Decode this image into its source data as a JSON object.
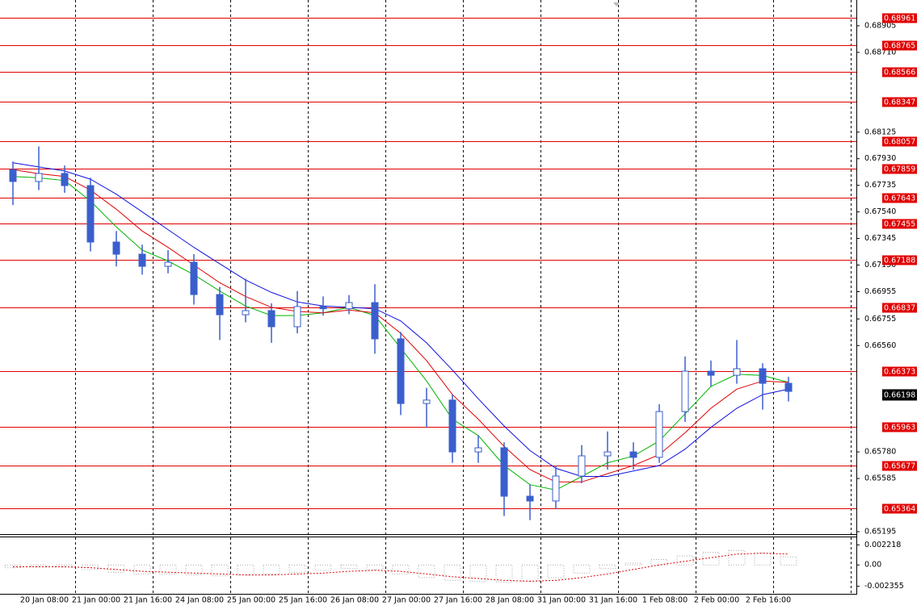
{
  "chart_data": {
    "type": "candlestick",
    "categories": [
      null,
      "20 Jan 08:00",
      null,
      "21 Jan 00:00",
      null,
      "21 Jan 16:00",
      null,
      "24 Jan 08:00",
      null,
      "25 Jan 00:00",
      null,
      "25 Jan 16:00",
      null,
      "26 Jan 08:00",
      null,
      "27 Jan 00:00",
      null,
      "27 Jan 16:00",
      null,
      "28 Jan 08:00",
      null,
      "31 Jan 00:00",
      null,
      "31 Jan 16:00",
      null,
      "1 Feb 08:00",
      null,
      "2 Feb 00:00",
      null,
      "2 Feb 16:00",
      null
    ],
    "open": [
      0.6785,
      0.67763,
      0.67822,
      0.67733,
      0.67319,
      0.6723,
      0.67141,
      0.67171,
      0.66934,
      0.66786,
      0.66816,
      0.66698,
      0.66846,
      0.6683,
      0.66875,
      0.66609,
      0.66135,
      0.6616,
      0.6578,
      0.6581,
      0.65455,
      0.6542,
      0.65603,
      0.65751,
      0.6578,
      0.6574,
      0.66076,
      0.66372,
      0.66342,
      0.6639,
      0.66283
    ],
    "high": [
      0.6791,
      0.6802,
      0.6788,
      0.6779,
      0.674,
      0.673,
      0.6726,
      0.6723,
      0.6699,
      0.6705,
      0.6687,
      0.6696,
      0.6692,
      0.6693,
      0.6701,
      0.6666,
      0.6625,
      0.662,
      0.659,
      0.6585,
      0.6554,
      0.6568,
      0.6583,
      0.6593,
      0.6585,
      0.6613,
      0.6648,
      0.6645,
      0.666,
      0.6643,
      0.6633
    ],
    "low": [
      0.6759,
      0.677,
      0.6768,
      0.6725,
      0.6714,
      0.6708,
      0.6709,
      0.6686,
      0.666,
      0.6673,
      0.6658,
      0.6665,
      0.6678,
      0.6679,
      0.665,
      0.6605,
      0.6596,
      0.657,
      0.657,
      0.6531,
      0.6528,
      0.6536,
      0.6555,
      0.6565,
      0.6565,
      0.657,
      0.66,
      0.6626,
      0.6628,
      0.6609,
      0.6615
    ],
    "close": [
      0.67763,
      0.67822,
      0.67733,
      0.67319,
      0.6723,
      0.67141,
      0.67171,
      0.66934,
      0.66786,
      0.66816,
      0.66698,
      0.66846,
      0.6683,
      0.66875,
      0.66609,
      0.66135,
      0.6616,
      0.6578,
      0.6581,
      0.65455,
      0.6542,
      0.65603,
      0.65751,
      0.6578,
      0.6574,
      0.66076,
      0.66372,
      0.66342,
      0.6639,
      0.66283,
      0.66224
    ],
    "color": "#3a5fcd",
    "series": [
      {
        "color": "#00b400",
        "values": [
          0.678,
          0.6779,
          0.6777,
          0.6762,
          0.6743,
          0.6726,
          0.6718,
          0.6708,
          0.6696,
          0.6685,
          0.6678,
          0.6678,
          0.668,
          0.6684,
          0.6678,
          0.6654,
          0.663,
          0.6602,
          0.659,
          0.6568,
          0.6554,
          0.655,
          0.656,
          0.657,
          0.6575,
          0.6586,
          0.6606,
          0.6626,
          0.6635,
          0.6634,
          0.6629
        ]
      },
      {
        "color": "#e00000",
        "values": [
          0.6785,
          0.6782,
          0.678,
          0.677,
          0.6756,
          0.674,
          0.6728,
          0.6715,
          0.6702,
          0.6692,
          0.6684,
          0.6681,
          0.668,
          0.6682,
          0.668,
          0.6665,
          0.6645,
          0.662,
          0.6602,
          0.6582,
          0.6565,
          0.6556,
          0.6556,
          0.6562,
          0.6568,
          0.6576,
          0.6592,
          0.661,
          0.6624,
          0.663,
          0.6629
        ]
      },
      {
        "color": "#1010e0",
        "values": [
          0.679,
          0.6787,
          0.6784,
          0.6778,
          0.6767,
          0.6754,
          0.6741,
          0.6728,
          0.6716,
          0.6704,
          0.6695,
          0.6688,
          0.6685,
          0.6684,
          0.6683,
          0.6674,
          0.6658,
          0.6638,
          0.6617,
          0.6597,
          0.6579,
          0.6566,
          0.656,
          0.656,
          0.6564,
          0.6568,
          0.658,
          0.6596,
          0.661,
          0.662,
          0.6624
        ]
      }
    ],
    "ylim": [
      0.65177,
      0.69094
    ],
    "yticks": [
      0.68905,
      {
        "value": 0.6871,
        "label": "0.68710"
      },
      0.68125,
      {
        "value": 0.6793,
        "label": "0.67930"
      },
      0.67735,
      {
        "value": 0.6754,
        "label": "0.67540"
      },
      0.67345,
      {
        "value": 0.6715,
        "label": "0.67150"
      },
      0.66955,
      0.66755,
      {
        "value": 0.6656,
        "label": "0.66560"
      },
      {
        "value": 0.6578,
        "label": "0.65780"
      },
      0.65585,
      0.65195
    ],
    "levels": {
      "color": "#e00000",
      "values": [
        0.68961,
        0.68765,
        0.68566,
        0.68347,
        0.68057,
        0.67859,
        0.67643,
        0.67455,
        0.67188,
        0.66837,
        0.66373,
        0.65963,
        0.65677,
        0.65364
      ]
    },
    "last_price": 0.66198,
    "grid": true,
    "indicator": {
      "type": "histogram",
      "color": "#a8a8a8",
      "values": [
        -0.0003,
        -0.0002,
        -0.0002,
        -0.0005,
        -0.0008,
        -0.001,
        -0.001,
        -0.0011,
        -0.0012,
        -0.0011,
        -0.001,
        -0.0008,
        -0.0006,
        -0.0004,
        -0.0005,
        -0.001,
        -0.0014,
        -0.0017,
        -0.0018,
        -0.0019,
        -0.0018,
        -0.0014,
        -0.0009,
        -0.0004,
        0.0002,
        0.0006,
        0.001,
        0.0014,
        0.0016,
        0.0013,
        0.0009
      ],
      "signal": {
        "color": "#e00000",
        "values": [
          -0.0002,
          -0.0002,
          -0.0002,
          -0.0003,
          -0.0005,
          -0.0007,
          -0.0008,
          -0.0009,
          -0.001,
          -0.0011,
          -0.0011,
          -0.001,
          -0.0009,
          -0.0007,
          -0.0006,
          -0.0007,
          -0.001,
          -0.0013,
          -0.0015,
          -0.0017,
          -0.0018,
          -0.0017,
          -0.0014,
          -0.001,
          -0.0005,
          0.0,
          0.0004,
          0.0008,
          0.0012,
          0.0013,
          0.0012
        ]
      },
      "ylim": [
        -0.00319,
        0.00305
      ],
      "yticks": [
        0.002218,
        {
          "value": 0,
          "label": "0.00"
        },
        -0.002355
      ]
    }
  }
}
